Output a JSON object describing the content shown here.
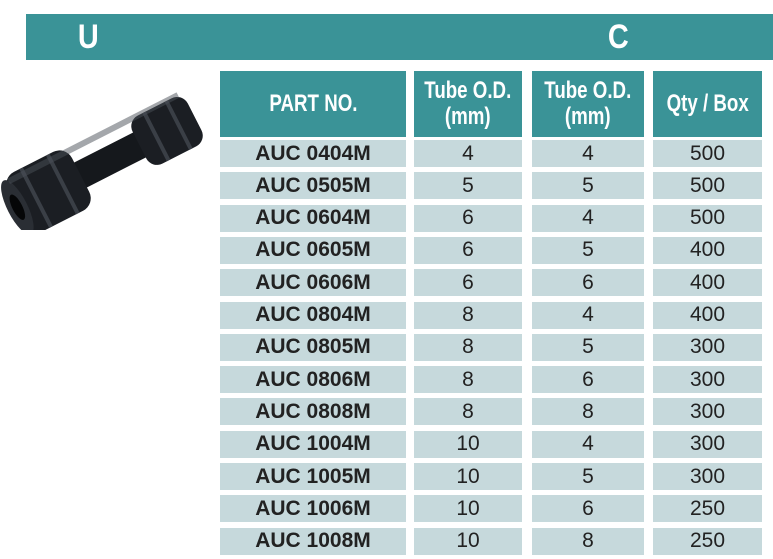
{
  "banner": {
    "left": "U",
    "right": "C",
    "color": "#3a9397"
  },
  "product_image": {
    "icon": "push-fit-union-connector-icon"
  },
  "table": {
    "headers": [
      "PART NO.",
      "Tube O.D.\n(mm)",
      "Tube O.D.\n(mm)",
      "Qty / Box"
    ],
    "rows": [
      [
        "AUC 0404M",
        "4",
        "4",
        "500"
      ],
      [
        "AUC 0505M",
        "5",
        "5",
        "500"
      ],
      [
        "AUC 0604M",
        "6",
        "4",
        "500"
      ],
      [
        "AUC 0605M",
        "6",
        "5",
        "400"
      ],
      [
        "AUC 0606M",
        "6",
        "6",
        "400"
      ],
      [
        "AUC 0804M",
        "8",
        "4",
        "400"
      ],
      [
        "AUC 0805M",
        "8",
        "5",
        "300"
      ],
      [
        "AUC 0806M",
        "8",
        "6",
        "300"
      ],
      [
        "AUC 0808M",
        "8",
        "8",
        "300"
      ],
      [
        "AUC 1004M",
        "10",
        "4",
        "300"
      ],
      [
        "AUC 1005M",
        "10",
        "5",
        "300"
      ],
      [
        "AUC 1006M",
        "10",
        "6",
        "250"
      ],
      [
        "AUC 1008M",
        "10",
        "8",
        "250"
      ]
    ]
  }
}
